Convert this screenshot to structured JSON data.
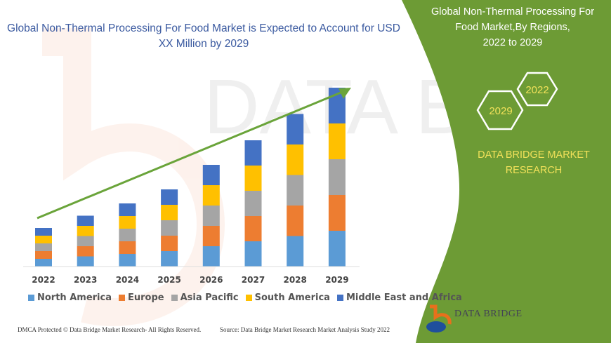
{
  "title": "Global Non-Thermal Processing For Food Market is Expected to Account for USD XX Million by 2029",
  "panel": {
    "title_lines": [
      "Global Non-Thermal Processing For",
      "Food Market,By Regions,",
      "2022 to 2029"
    ],
    "hex_start": "2022",
    "hex_end": "2029",
    "brand_lines": [
      "DATA BRIDGE MARKET",
      "RESEARCH"
    ],
    "logo_text": "DATA BRIDGE",
    "color": "#6d9b35"
  },
  "footer": {
    "left": "DMCA Protected © Data Bridge Market Research- All Rights Reserved.",
    "right": "Source: Data Bridge Market Research Market Analysis Study 2022"
  },
  "chart_data": {
    "type": "bar",
    "stacked": true,
    "title": "Global Non-Thermal Processing For Food Market is Expected to Account for USD XX Million by 2029",
    "categories": [
      "2022",
      "2023",
      "2024",
      "2025",
      "2026",
      "2027",
      "2028",
      "2029"
    ],
    "series": [
      {
        "name": "North America",
        "color": "#5b9bd5",
        "values": [
          11,
          14.5,
          18,
          22,
          29,
          36,
          43.5,
          51
        ]
      },
      {
        "name": "Europe",
        "color": "#ed7d31",
        "values": [
          11,
          14.5,
          18,
          22,
          29,
          36,
          43.5,
          51
        ]
      },
      {
        "name": "Asia Pacific",
        "color": "#a5a5a5",
        "values": [
          11,
          14.5,
          18,
          22,
          29,
          36,
          43.5,
          51
        ]
      },
      {
        "name": "South America",
        "color": "#ffc000",
        "values": [
          11,
          14.5,
          18,
          22,
          29,
          36,
          43.5,
          51
        ]
      },
      {
        "name": "Middle East and Africa",
        "color": "#4472c4",
        "values": [
          11,
          14.5,
          18,
          22,
          29,
          36,
          43.5,
          51
        ]
      }
    ],
    "ylim": [
      0,
      255
    ],
    "yaxis_visible": false,
    "grid": false,
    "legend": "bottom",
    "trend_arrow_color": "#6aa43a"
  }
}
